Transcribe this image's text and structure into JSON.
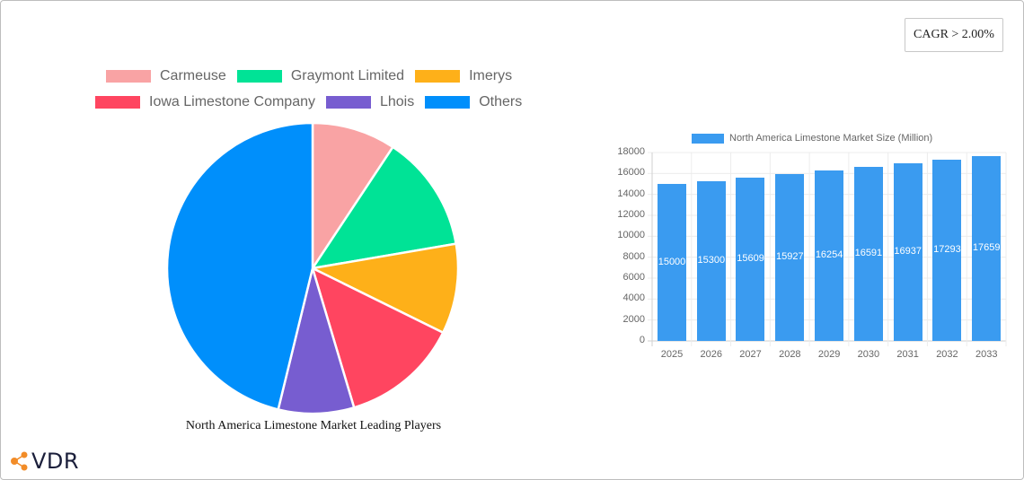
{
  "cagr_badge": "CAGR > 2.00%",
  "pie_chart": {
    "title": "North America Limestone Market Leading Players",
    "legend": [
      {
        "label": "Carmeuse",
        "color": "#f9a3a4"
      },
      {
        "label": "Graymont Limited",
        "color": "#00e396"
      },
      {
        "label": "Imerys",
        "color": "#feb019"
      },
      {
        "label": "Iowa Limestone Company",
        "color": "#ff4560"
      },
      {
        "label": "Lhois",
        "color": "#775dd0"
      },
      {
        "label": "Others",
        "color": "#008ffb"
      }
    ]
  },
  "bar_chart": {
    "legend_label": "North America Limestone Market Size (Million)",
    "bar_color": "#3a9bf0",
    "y_ticks": [
      "18000",
      "16000",
      "14000",
      "12000",
      "10000",
      "8000",
      "6000",
      "4000",
      "2000",
      "0"
    ],
    "x_ticks": [
      "2025",
      "2026",
      "2027",
      "2028",
      "2029",
      "2030",
      "2031",
      "2032",
      "2033"
    ],
    "value_labels": [
      "15000",
      "15300",
      "15609",
      "15927",
      "16254",
      "16591",
      "16937",
      "17293",
      "17659"
    ]
  },
  "logo": {
    "text": "VDR",
    "accent": "#f28c28"
  },
  "chart_data": [
    {
      "type": "pie",
      "title": "North America Limestone Market Leading Players",
      "categories": [
        "Carmeuse",
        "Graymont Limited",
        "Imerys",
        "Iowa Limestone Company",
        "Lhois",
        "Others"
      ],
      "values": [
        9.3,
        13.0,
        10.0,
        13.1,
        8.4,
        46.2
      ],
      "colors": [
        "#f9a3a4",
        "#00e396",
        "#feb019",
        "#ff4560",
        "#775dd0",
        "#008ffb"
      ],
      "legend_position": "top"
    },
    {
      "type": "bar",
      "title": "",
      "categories": [
        "2025",
        "2026",
        "2027",
        "2028",
        "2029",
        "2030",
        "2031",
        "2032",
        "2033"
      ],
      "series": [
        {
          "name": "North America Limestone Market Size (Million)",
          "values": [
            15000,
            15300,
            15609,
            15927,
            16254,
            16591,
            16937,
            17293,
            17659
          ]
        }
      ],
      "xlabel": "",
      "ylabel": "",
      "ylim": [
        0,
        18000
      ],
      "grid": true,
      "legend_position": "top",
      "annotations": [
        "CAGR > 2.00%"
      ]
    }
  ]
}
